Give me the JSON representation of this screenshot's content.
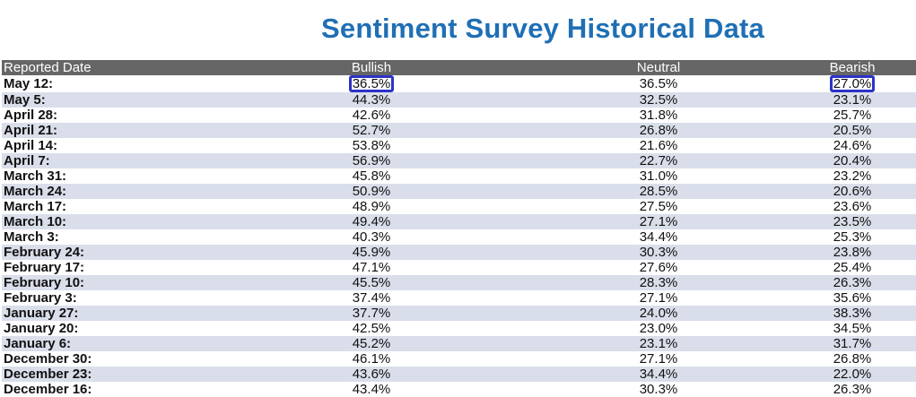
{
  "title": "Sentiment Survey Historical Data",
  "colors": {
    "title": "#1f6fb5",
    "header_bg": "#666666",
    "stripe": "#d9deea",
    "highlight": "#2d32c8"
  },
  "chart_data": {
    "type": "table",
    "title": "Sentiment Survey Historical Data",
    "columns": [
      "Reported Date",
      "Bullish",
      "Neutral",
      "Bearish"
    ],
    "rows": [
      [
        "May 12:",
        "36.5%",
        "36.5%",
        "27.0%"
      ],
      [
        "May 5:",
        "44.3%",
        "32.5%",
        "23.1%"
      ],
      [
        "April 28:",
        "42.6%",
        "31.8%",
        "25.7%"
      ],
      [
        "April 21:",
        "52.7%",
        "26.8%",
        "20.5%"
      ],
      [
        "April 14:",
        "53.8%",
        "21.6%",
        "24.6%"
      ],
      [
        "April 7:",
        "56.9%",
        "22.7%",
        "20.4%"
      ],
      [
        "March 31:",
        "45.8%",
        "31.0%",
        "23.2%"
      ],
      [
        "March 24:",
        "50.9%",
        "28.5%",
        "20.6%"
      ],
      [
        "March 17:",
        "48.9%",
        "27.5%",
        "23.6%"
      ],
      [
        "March 10:",
        "49.4%",
        "27.1%",
        "23.5%"
      ],
      [
        "March 3:",
        "40.3%",
        "34.4%",
        "25.3%"
      ],
      [
        "February 24:",
        "45.9%",
        "30.3%",
        "23.8%"
      ],
      [
        "February 17:",
        "47.1%",
        "27.6%",
        "25.4%"
      ],
      [
        "February 10:",
        "45.5%",
        "28.3%",
        "26.3%"
      ],
      [
        "February 3:",
        "37.4%",
        "27.1%",
        "35.6%"
      ],
      [
        "January 27:",
        "37.7%",
        "24.0%",
        "38.3%"
      ],
      [
        "January 20:",
        "42.5%",
        "23.0%",
        "34.5%"
      ],
      [
        "January 6:",
        "45.2%",
        "23.1%",
        "31.7%"
      ],
      [
        "December 30:",
        "46.1%",
        "27.1%",
        "26.8%"
      ],
      [
        "December 23:",
        "43.6%",
        "34.4%",
        "22.0%"
      ],
      [
        "December 16:",
        "43.4%",
        "30.3%",
        "26.3%"
      ]
    ],
    "highlighted_cells": [
      {
        "row": 0,
        "column": "Bullish"
      },
      {
        "row": 0,
        "column": "Bearish"
      }
    ]
  }
}
